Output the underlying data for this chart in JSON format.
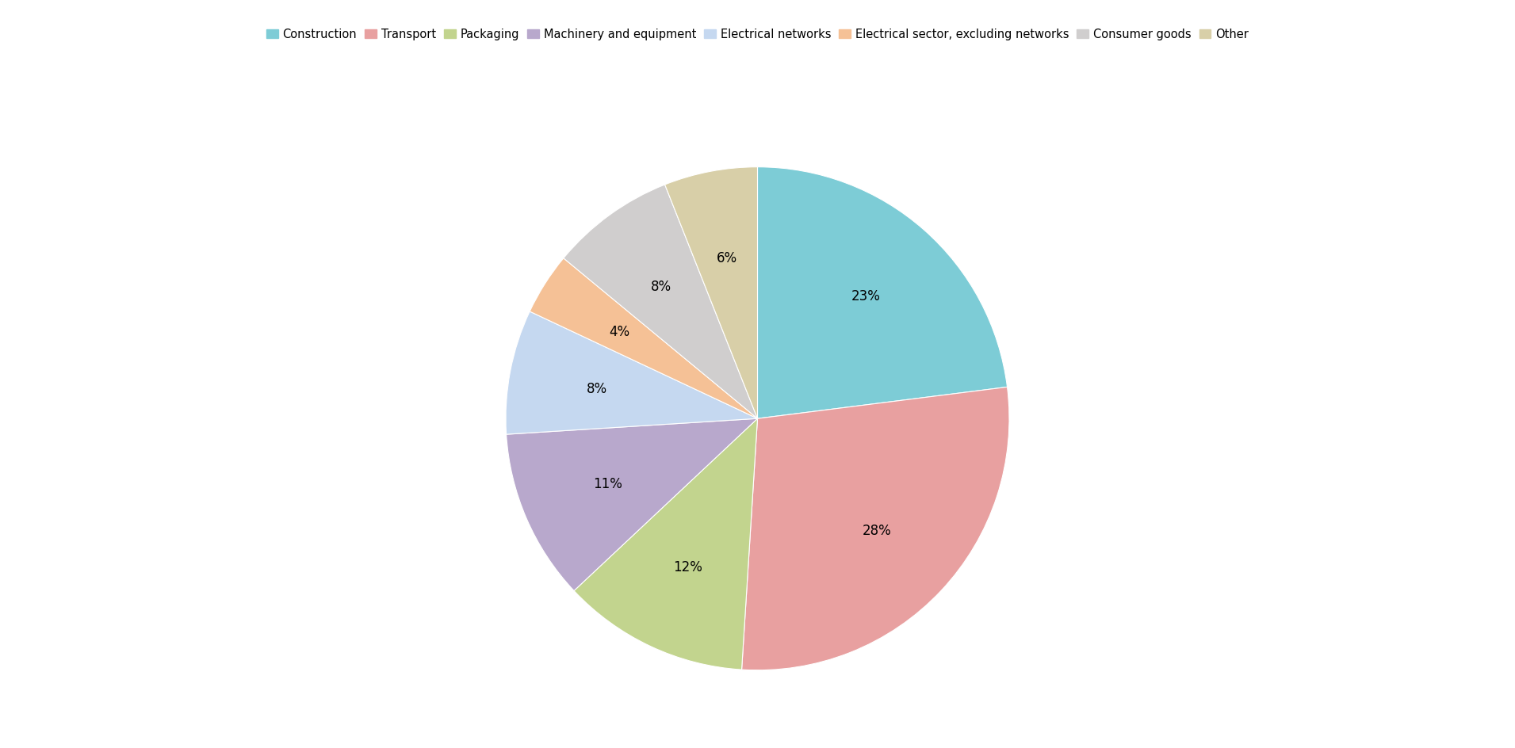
{
  "labels": [
    "Construction",
    "Transport",
    "Packaging",
    "Machinery and equipment",
    "Electrical networks",
    "Electrical sector, excluding networks",
    "Consumer goods",
    "Other"
  ],
  "values": [
    23,
    28,
    12,
    11,
    8,
    4,
    8,
    6
  ],
  "colors": [
    "#7dccd6",
    "#e8a0a0",
    "#c2d48e",
    "#b8a8cc",
    "#c5d8f0",
    "#f5c196",
    "#d0cece",
    "#d8cfa8"
  ],
  "startangle": 90,
  "background_color": "#ffffff",
  "label_fontsize": 12,
  "legend_fontsize": 10.5
}
